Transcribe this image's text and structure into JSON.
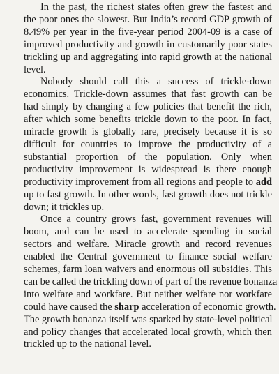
{
  "paragraphs": [
    {
      "lines": [
        "In the past, the richest states often grew the fastest and",
        "the poor ones the slowest. But India’s record GDP growth of",
        "8.49% per year in the five-year period 2004-09 is a case of",
        "improved productivity and growth in customarily poor states",
        "trickling up and aggregating into rapid growth at the national",
        "level."
      ]
    },
    {
      "lines": [
        "Nobody should call this a success of trickle-down",
        "economics. Trickle-down assumes that fast growth can be",
        "had simply by changing a few policies that benefit the rich,",
        "after which some benefits trickle down to the poor. In fact,",
        "miracle growth is globally rare, precisely because it is so",
        "difficult for countries to improve the productivity of a",
        "substantial proportion of the population. Only when",
        "productivity improvement is widespread is there enough",
        "productivity improvement from all regions and people to add",
        "up to fast growth. In other words, fast growth does not trickle",
        "down; it trickles up."
      ]
    },
    {
      "lines": [
        "Once a country grows fast, government revenues will",
        "boom, and can be used to accelerate spending in social",
        "sectors and welfare. Miracle growth and record revenues",
        "enabled the Central government to finance social welfare",
        "schemes, farm loan waivers and enormous oil subsidies. This",
        "can be called the trickling down of part of the revenue bonanza",
        "into welfare and workfare. But neither welfare nor workfare",
        "could have caused the sharp acceleration of economic growth.",
        "The growth bonanza itself was sparked by state-level political",
        "and policy changes that accelerated local growth, which then",
        "trickled up to the national level."
      ]
    }
  ]
}
